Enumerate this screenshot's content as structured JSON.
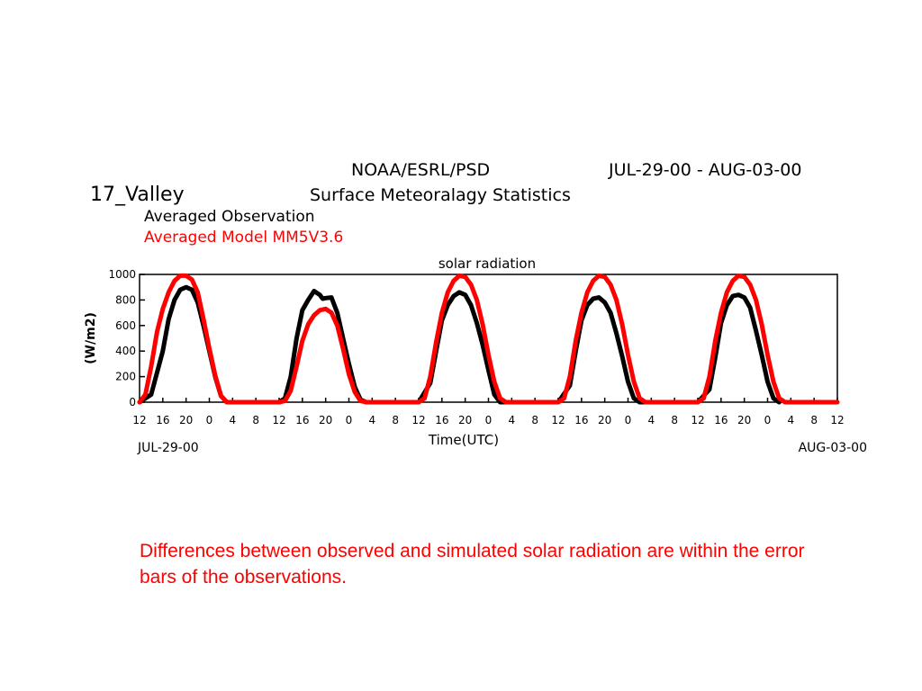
{
  "header": {
    "agency": "NOAA/ESRL/PSD",
    "date_range": "JUL-29-00 - AUG-03-00",
    "station": "17_Valley",
    "subtitle": "Surface Meteoralagy Statistics"
  },
  "legend": {
    "observation": "Averaged Observation",
    "model": "Averaged Model MM5V3.6"
  },
  "caption": "Differences between observed and simulated solar radiation are within the error bars of the observations.",
  "chart_data": {
    "type": "line",
    "title": "solar radiation",
    "xlabel": "Time(UTC)",
    "ylabel": "(W/m2)",
    "x_start_label": "JUL-29-00",
    "x_end_label": "AUG-03-00",
    "x_tick_labels": [
      "12",
      "16",
      "20",
      "0",
      "4",
      "8",
      "12",
      "16",
      "20",
      "0",
      "4",
      "8",
      "12",
      "16",
      "20",
      "0",
      "4",
      "8",
      "12",
      "16",
      "20",
      "0",
      "4",
      "8",
      "12",
      "16",
      "20",
      "0",
      "4",
      "8",
      "12"
    ],
    "ylim": [
      0,
      1000
    ],
    "y_ticks": [
      0,
      200,
      400,
      600,
      800,
      1000
    ],
    "series": [
      {
        "name": "Averaged Observation",
        "color": "#000000",
        "points": [
          [
            "12",
            0
          ],
          [
            "14",
            60
          ],
          [
            "16",
            400
          ],
          [
            "17",
            650
          ],
          [
            "18",
            800
          ],
          [
            "19",
            880
          ],
          [
            "20",
            900
          ],
          [
            "21",
            880
          ],
          [
            "22",
            780
          ],
          [
            "23",
            600
          ],
          [
            "0",
            400
          ],
          [
            "1",
            200
          ],
          [
            "2",
            50
          ],
          [
            "3",
            0
          ],
          [
            "4",
            0
          ],
          [
            "8",
            0
          ],
          [
            "12",
            0
          ],
          [
            "13",
            30
          ],
          [
            "14",
            200
          ],
          [
            "15",
            500
          ],
          [
            "16",
            720
          ],
          [
            "17",
            800
          ],
          [
            "18",
            870
          ],
          [
            "19",
            840
          ],
          [
            "19.5",
            810
          ],
          [
            "20",
            815
          ],
          [
            "21",
            820
          ],
          [
            "22",
            700
          ],
          [
            "23",
            500
          ],
          [
            "0",
            300
          ],
          [
            "1",
            120
          ],
          [
            "2",
            20
          ],
          [
            "3",
            0
          ],
          [
            "4",
            0
          ],
          [
            "8",
            0
          ],
          [
            "12",
            0
          ],
          [
            "14",
            150
          ],
          [
            "15",
            400
          ],
          [
            "16",
            640
          ],
          [
            "17",
            760
          ],
          [
            "18",
            830
          ],
          [
            "19",
            860
          ],
          [
            "20",
            840
          ],
          [
            "21",
            760
          ],
          [
            "22",
            620
          ],
          [
            "23",
            450
          ],
          [
            "0",
            250
          ],
          [
            "1",
            60
          ],
          [
            "2",
            0
          ],
          [
            "4",
            0
          ],
          [
            "8",
            0
          ],
          [
            "12",
            0
          ],
          [
            "14",
            130
          ],
          [
            "15",
            400
          ],
          [
            "16",
            640
          ],
          [
            "17",
            760
          ],
          [
            "18",
            810
          ],
          [
            "19",
            820
          ],
          [
            "20",
            780
          ],
          [
            "21",
            700
          ],
          [
            "22",
            540
          ],
          [
            "23",
            360
          ],
          [
            "0",
            160
          ],
          [
            "1",
            30
          ],
          [
            "2",
            0
          ],
          [
            "4",
            0
          ],
          [
            "8",
            0
          ],
          [
            "12",
            0
          ],
          [
            "14",
            100
          ],
          [
            "15",
            350
          ],
          [
            "16",
            620
          ],
          [
            "17",
            760
          ],
          [
            "18",
            830
          ],
          [
            "19",
            840
          ],
          [
            "20",
            820
          ],
          [
            "21",
            740
          ],
          [
            "22",
            560
          ],
          [
            "23",
            370
          ],
          [
            "0",
            160
          ],
          [
            "1",
            30
          ],
          [
            "2",
            0
          ]
        ]
      },
      {
        "name": "Averaged Model MM5V3.6",
        "color": "#ff0000",
        "points": [
          [
            "12",
            0
          ],
          [
            "13",
            60
          ],
          [
            "14",
            280
          ],
          [
            "15",
            550
          ],
          [
            "16",
            730
          ],
          [
            "17",
            860
          ],
          [
            "18",
            950
          ],
          [
            "19",
            990
          ],
          [
            "20",
            990
          ],
          [
            "21",
            960
          ],
          [
            "22",
            860
          ],
          [
            "23",
            650
          ],
          [
            "0",
            420
          ],
          [
            "1",
            210
          ],
          [
            "2",
            50
          ],
          [
            "3",
            0
          ],
          [
            "4",
            0
          ],
          [
            "8",
            0
          ],
          [
            "12",
            0
          ],
          [
            "13",
            10
          ],
          [
            "14",
            90
          ],
          [
            "15",
            280
          ],
          [
            "16",
            480
          ],
          [
            "17",
            610
          ],
          [
            "18",
            680
          ],
          [
            "19",
            720
          ],
          [
            "20",
            730
          ],
          [
            "21",
            700
          ],
          [
            "22",
            600
          ],
          [
            "23",
            420
          ],
          [
            "0",
            220
          ],
          [
            "1",
            80
          ],
          [
            "2",
            10
          ],
          [
            "3",
            0
          ],
          [
            "4",
            0
          ],
          [
            "8",
            0
          ],
          [
            "12",
            0
          ],
          [
            "13",
            30
          ],
          [
            "14",
            200
          ],
          [
            "15",
            470
          ],
          [
            "16",
            700
          ],
          [
            "17",
            860
          ],
          [
            "18",
            950
          ],
          [
            "19",
            990
          ],
          [
            "20",
            980
          ],
          [
            "21",
            920
          ],
          [
            "22",
            800
          ],
          [
            "23",
            610
          ],
          [
            "0",
            370
          ],
          [
            "1",
            160
          ],
          [
            "2",
            30
          ],
          [
            "3",
            0
          ],
          [
            "4",
            0
          ],
          [
            "8",
            0
          ],
          [
            "12",
            0
          ],
          [
            "13",
            30
          ],
          [
            "14",
            200
          ],
          [
            "15",
            480
          ],
          [
            "16",
            700
          ],
          [
            "17",
            860
          ],
          [
            "18",
            950
          ],
          [
            "19",
            990
          ],
          [
            "20",
            980
          ],
          [
            "21",
            920
          ],
          [
            "22",
            800
          ],
          [
            "23",
            610
          ],
          [
            "0",
            370
          ],
          [
            "1",
            160
          ],
          [
            "2",
            30
          ],
          [
            "3",
            0
          ],
          [
            "4",
            0
          ],
          [
            "8",
            0
          ],
          [
            "12",
            0
          ],
          [
            "13",
            30
          ],
          [
            "14",
            200
          ],
          [
            "15",
            480
          ],
          [
            "16",
            700
          ],
          [
            "17",
            860
          ],
          [
            "18",
            950
          ],
          [
            "19",
            990
          ],
          [
            "20",
            980
          ],
          [
            "21",
            920
          ],
          [
            "22",
            800
          ],
          [
            "23",
            610
          ],
          [
            "0",
            370
          ],
          [
            "1",
            160
          ],
          [
            "2",
            30
          ],
          [
            "3",
            0
          ],
          [
            "4",
            0
          ],
          [
            "8",
            0
          ],
          [
            "12",
            0
          ]
        ]
      }
    ]
  }
}
